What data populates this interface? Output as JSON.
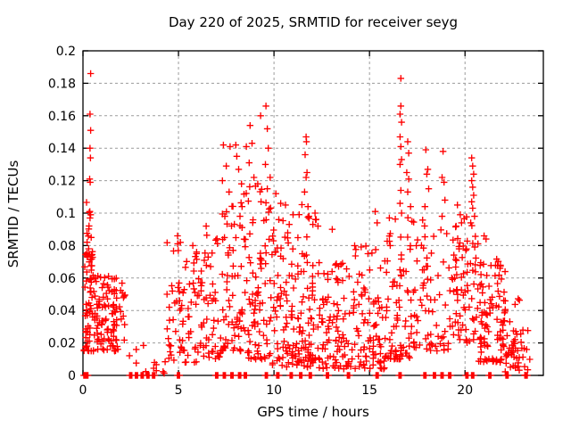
{
  "page": {
    "background": "#ffffff"
  },
  "chart_data": {
    "type": "scatter",
    "title": "Day 220 of 2025, SRMTID for receiver seyg",
    "xlabel": "GPS time / hours",
    "ylabel": "SRMTID / TECUs",
    "xlim": [
      0,
      24.1
    ],
    "ylim": [
      0,
      0.2
    ],
    "xticks": {
      "values": [
        0,
        5,
        10,
        15,
        20
      ],
      "labels": [
        "0",
        "5",
        "10",
        "15",
        "20"
      ]
    },
    "yticks": {
      "values": [
        0,
        0.02,
        0.04,
        0.06,
        0.08,
        0.1,
        0.12,
        0.14,
        0.16,
        0.18,
        0.2
      ],
      "labels": [
        "0",
        "0.02",
        "0.04",
        "0.06",
        "0.08",
        "0.1",
        "0.12",
        "0.14",
        "0.16",
        "0.18",
        "0.2"
      ]
    },
    "grid": {
      "show": true,
      "color": "#9c9c9c",
      "dash": "3,3"
    },
    "legend": "none",
    "border_color": "#000000",
    "marker": {
      "shape": "plus",
      "color": "#ff0000",
      "size": 7.5,
      "stroke_width": 1.35
    },
    "seed": 7,
    "high_points": [
      [
        0.4,
        0.186
      ],
      [
        0.37,
        0.161
      ],
      [
        0.4,
        0.151
      ],
      [
        0.37,
        0.14
      ],
      [
        0.39,
        0.134
      ],
      [
        0.35,
        0.121
      ],
      [
        0.38,
        0.119
      ],
      [
        0.36,
        0.101
      ],
      [
        0.4,
        0.099
      ],
      [
        0.37,
        0.097
      ],
      [
        0.43,
        0.085
      ],
      [
        0.3,
        0.078
      ],
      [
        4.95,
        0.086
      ],
      [
        5.1,
        0.082
      ],
      [
        5.75,
        0.08
      ],
      [
        5.95,
        0.076
      ],
      [
        6.45,
        0.092
      ],
      [
        7.35,
        0.142
      ],
      [
        7.7,
        0.141
      ],
      [
        7.5,
        0.129
      ],
      [
        7.3,
        0.12
      ],
      [
        7.65,
        0.113
      ],
      [
        8.0,
        0.142
      ],
      [
        8.05,
        0.135
      ],
      [
        8.15,
        0.127
      ],
      [
        8.3,
        0.118
      ],
      [
        8.75,
        0.154
      ],
      [
        8.85,
        0.143
      ],
      [
        8.55,
        0.141
      ],
      [
        8.7,
        0.131
      ],
      [
        8.95,
        0.122
      ],
      [
        9.15,
        0.118
      ],
      [
        9.3,
        0.16
      ],
      [
        9.58,
        0.166
      ],
      [
        9.65,
        0.152
      ],
      [
        9.7,
        0.14
      ],
      [
        9.55,
        0.13
      ],
      [
        9.8,
        0.122
      ],
      [
        9.65,
        0.115
      ],
      [
        10.1,
        0.112
      ],
      [
        10.35,
        0.106
      ],
      [
        10.6,
        0.105
      ],
      [
        11.0,
        0.099
      ],
      [
        10.25,
        0.096
      ],
      [
        10.8,
        0.093
      ],
      [
        11.68,
        0.147
      ],
      [
        11.7,
        0.144
      ],
      [
        11.63,
        0.136
      ],
      [
        11.73,
        0.125
      ],
      [
        11.68,
        0.122
      ],
      [
        11.6,
        0.113
      ],
      [
        11.78,
        0.104
      ],
      [
        11.83,
        0.098
      ],
      [
        12.15,
        0.1
      ],
      [
        12.3,
        0.092
      ],
      [
        13.05,
        0.09
      ],
      [
        15.3,
        0.101
      ],
      [
        15.4,
        0.094
      ],
      [
        16.64,
        0.183
      ],
      [
        16.64,
        0.166
      ],
      [
        16.6,
        0.161
      ],
      [
        16.68,
        0.156
      ],
      [
        16.6,
        0.147
      ],
      [
        16.64,
        0.141
      ],
      [
        16.68,
        0.133
      ],
      [
        16.6,
        0.13
      ],
      [
        16.64,
        0.114
      ],
      [
        16.6,
        0.106
      ],
      [
        16.68,
        0.1
      ],
      [
        17.0,
        0.144
      ],
      [
        17.05,
        0.137
      ],
      [
        16.95,
        0.125
      ],
      [
        17.05,
        0.121
      ],
      [
        17.0,
        0.113
      ],
      [
        17.15,
        0.104
      ],
      [
        17.95,
        0.139
      ],
      [
        18.05,
        0.127
      ],
      [
        18.0,
        0.124
      ],
      [
        18.1,
        0.115
      ],
      [
        17.9,
        0.104
      ],
      [
        18.85,
        0.138
      ],
      [
        18.8,
        0.122
      ],
      [
        18.9,
        0.119
      ],
      [
        18.95,
        0.108
      ],
      [
        18.8,
        0.098
      ],
      [
        19.6,
        0.105
      ],
      [
        19.75,
        0.099
      ],
      [
        20.35,
        0.134
      ],
      [
        20.4,
        0.129
      ],
      [
        20.45,
        0.124
      ],
      [
        20.35,
        0.12
      ],
      [
        20.4,
        0.116
      ],
      [
        20.45,
        0.111
      ],
      [
        20.35,
        0.107
      ],
      [
        20.4,
        0.103
      ],
      [
        20.5,
        0.098
      ],
      [
        20.3,
        0.094
      ],
      [
        21.0,
        0.086
      ],
      [
        21.1,
        0.084
      ]
    ],
    "clusters": [
      [
        0.05,
        0.65,
        0.015,
        0.075,
        65,
        1.6
      ],
      [
        0.15,
        0.5,
        0.075,
        0.112,
        10,
        1.2
      ],
      [
        0.65,
        1.85,
        0.015,
        0.062,
        90,
        1.5
      ],
      [
        1.85,
        2.35,
        0.02,
        0.068,
        12,
        1.3
      ],
      [
        2.35,
        4.3,
        0.001,
        0.02,
        12,
        1.5
      ],
      [
        4.4,
        5.5,
        0.008,
        0.085,
        45,
        1.8
      ],
      [
        5.5,
        6.4,
        0.008,
        0.08,
        40,
        1.7
      ],
      [
        6.4,
        7.2,
        0.01,
        0.09,
        35,
        1.6
      ],
      [
        7.2,
        8.5,
        0.015,
        0.112,
        75,
        1.8
      ],
      [
        8.5,
        9.9,
        0.01,
        0.118,
        85,
        1.9
      ],
      [
        9.9,
        11.3,
        0.005,
        0.098,
        85,
        1.7
      ],
      [
        11.3,
        12.3,
        0.005,
        0.108,
        70,
        1.7
      ],
      [
        12.3,
        14.1,
        0.004,
        0.07,
        95,
        1.5
      ],
      [
        14.1,
        15.8,
        0.004,
        0.08,
        85,
        1.6
      ],
      [
        15.8,
        17.2,
        0.01,
        0.098,
        80,
        1.7
      ],
      [
        17.2,
        19.2,
        0.015,
        0.096,
        70,
        1.5
      ],
      [
        19.2,
        20.7,
        0.02,
        0.098,
        80,
        1.4
      ],
      [
        20.7,
        22.1,
        0.008,
        0.072,
        95,
        1.4
      ],
      [
        22.1,
        22.9,
        0.002,
        0.05,
        40,
        1.4
      ],
      [
        22.9,
        23.4,
        0.0,
        0.03,
        12,
        1.2
      ]
    ],
    "zero_line_clusters": [
      0.1,
      0.2,
      2.5,
      2.8,
      3.1,
      3.4,
      3.7,
      5.0,
      7.0,
      7.4,
      7.8,
      8.2,
      8.5,
      9.6,
      10.2,
      10.9,
      11.4,
      11.9,
      12.8,
      13.9,
      15.4,
      16.6,
      17.9,
      18.4,
      18.8,
      19.2,
      20.1,
      20.4,
      21.3,
      22.2,
      23.2
    ]
  }
}
